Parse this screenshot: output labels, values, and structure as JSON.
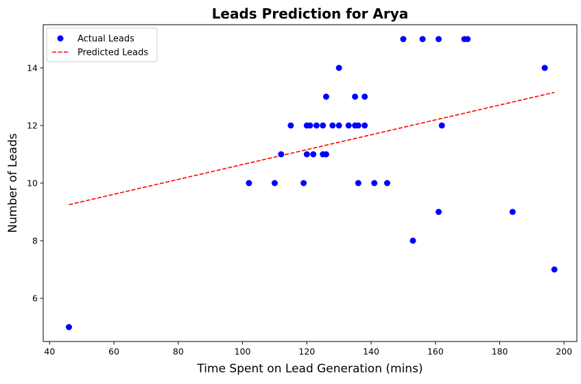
{
  "chart_data": {
    "type": "scatter",
    "title": "Leads Prediction for Arya",
    "xlabel": "Time Spent on Lead Generation (mins)",
    "ylabel": "Number of Leads",
    "xlim": [
      38,
      204
    ],
    "ylim": [
      4.5,
      15.5
    ],
    "xticks": [
      40,
      60,
      80,
      100,
      120,
      140,
      160,
      180,
      200
    ],
    "yticks": [
      6,
      8,
      10,
      12,
      14
    ],
    "grid": false,
    "legend": {
      "placement": "top-left",
      "entries": [
        "Actual Leads",
        "Predicted Leads"
      ]
    },
    "colors": {
      "actual": "#0000ff",
      "predicted": "#ff0000"
    },
    "series": [
      {
        "name": "Actual Leads",
        "type": "scatter",
        "points": [
          [
            46,
            5
          ],
          [
            102,
            10
          ],
          [
            110,
            10
          ],
          [
            112,
            11
          ],
          [
            115,
            12
          ],
          [
            119,
            10
          ],
          [
            120,
            11
          ],
          [
            120,
            12
          ],
          [
            121,
            12
          ],
          [
            122,
            11
          ],
          [
            123,
            12
          ],
          [
            125,
            11
          ],
          [
            125,
            12
          ],
          [
            126,
            11
          ],
          [
            126,
            13
          ],
          [
            128,
            12
          ],
          [
            130,
            14
          ],
          [
            130,
            12
          ],
          [
            133,
            12
          ],
          [
            135,
            13
          ],
          [
            135,
            12
          ],
          [
            136,
            12
          ],
          [
            136,
            10
          ],
          [
            138,
            13
          ],
          [
            138,
            12
          ],
          [
            141,
            10
          ],
          [
            145,
            10
          ],
          [
            150,
            15
          ],
          [
            153,
            8
          ],
          [
            156,
            15
          ],
          [
            161,
            15
          ],
          [
            161,
            9
          ],
          [
            162,
            12
          ],
          [
            169,
            15
          ],
          [
            170,
            15
          ],
          [
            184,
            9
          ],
          [
            194,
            14
          ],
          [
            197,
            7
          ]
        ]
      },
      {
        "name": "Predicted Leads",
        "type": "line",
        "style": "dashed",
        "points": [
          [
            46,
            9.25
          ],
          [
            197,
            13.15
          ]
        ]
      }
    ]
  }
}
